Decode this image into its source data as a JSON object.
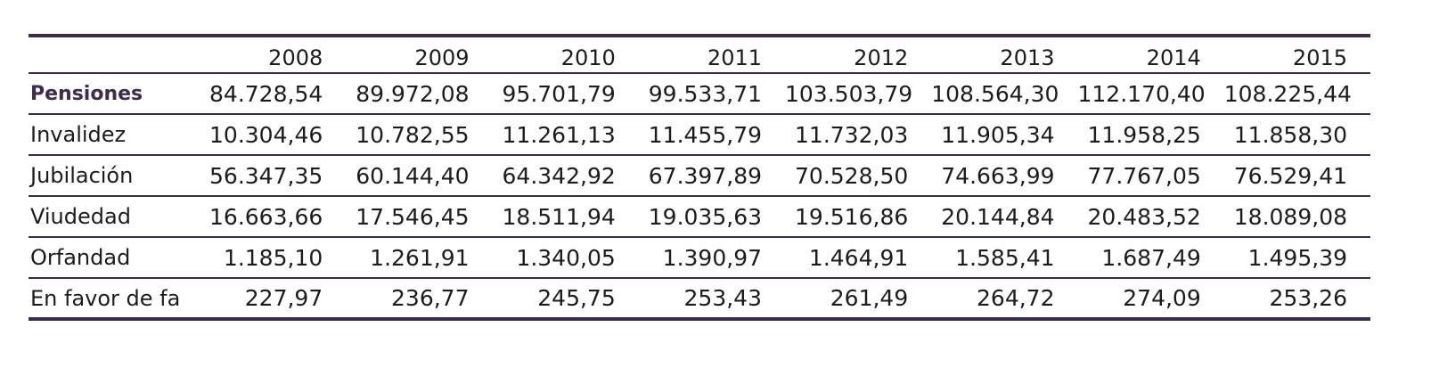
{
  "table": {
    "columns": [
      "",
      "2008",
      "2009",
      "2010",
      "2011",
      "2012",
      "2013",
      "2014",
      "2015"
    ],
    "rows": [
      {
        "label": "Pensiones",
        "values": [
          "84.728,54",
          "89.972,08",
          "95.701,79",
          "99.533,71",
          "103.503,79",
          "108.564,30",
          "112.170,40",
          "108.225,44"
        ]
      },
      {
        "label": "Invalidez",
        "values": [
          "10.304,46",
          "10.782,55",
          "11.261,13",
          "11.455,79",
          "11.732,03",
          "11.905,34",
          "11.958,25",
          "11.858,30"
        ]
      },
      {
        "label": "Jubilación",
        "values": [
          "56.347,35",
          "60.144,40",
          "64.342,92",
          "67.397,89",
          "70.528,50",
          "74.663,99",
          "77.767,05",
          "76.529,41"
        ]
      },
      {
        "label": "Viudedad",
        "values": [
          "16.663,66",
          "17.546,45",
          "18.511,94",
          "19.035,63",
          "19.516,86",
          "20.144,84",
          "20.483,52",
          "18.089,08"
        ]
      },
      {
        "label": "Orfandad",
        "values": [
          "1.185,10",
          "1.261,91",
          "1.340,05",
          "1.390,97",
          "1.464,91",
          "1.585,41",
          "1.687,49",
          "1.495,39"
        ]
      },
      {
        "label": "En favor de fa",
        "values": [
          "227,97",
          "236,77",
          "245,75",
          "253,43",
          "261,49",
          "264,72",
          "274,09",
          "253,26"
        ]
      }
    ]
  },
  "colors": {
    "accent": "#3d2c4e",
    "text": "#1c1c1c"
  }
}
